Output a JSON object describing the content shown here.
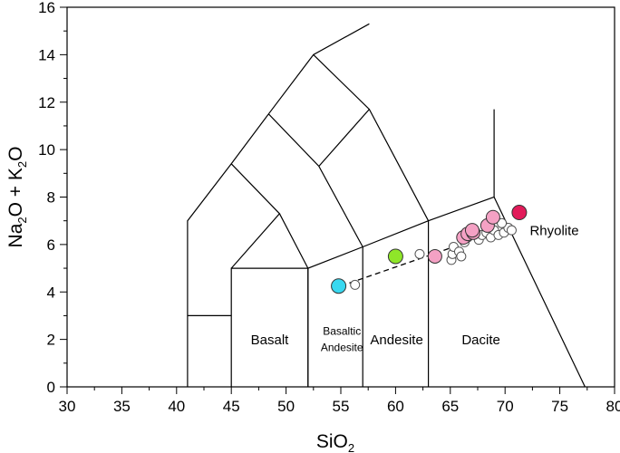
{
  "chart_data": {
    "type": "scatter",
    "title": "",
    "xlabel": {
      "base": "SiO",
      "sub": "2"
    },
    "ylabel": {
      "parts": [
        {
          "t": "Na"
        },
        {
          "t": "2",
          "sub": true
        },
        {
          "t": "O + K"
        },
        {
          "t": "2",
          "sub": true
        },
        {
          "t": "O"
        }
      ]
    },
    "xlim": [
      30,
      80
    ],
    "ylim": [
      0,
      16
    ],
    "x_ticks": [
      "30",
      "35",
      "40",
      "45",
      "50",
      "55",
      "60",
      "65",
      "70",
      "75",
      "80"
    ],
    "y_ticks": [
      "0",
      "2",
      "4",
      "6",
      "8",
      "10",
      "12",
      "14",
      "16"
    ],
    "grid": false,
    "field_boundaries": [
      [
        [
          41,
          0
        ],
        [
          41,
          7
        ],
        [
          45,
          9.4
        ],
        [
          48.4,
          11.5
        ],
        [
          52.5,
          14
        ],
        [
          57.6,
          15.3
        ]
      ],
      [
        [
          41,
          3
        ],
        [
          45,
          3
        ]
      ],
      [
        [
          45,
          0
        ],
        [
          45,
          5
        ],
        [
          52,
          5
        ],
        [
          52,
          0
        ]
      ],
      [
        [
          45,
          9.4
        ],
        [
          49.4,
          7.3
        ],
        [
          45,
          5
        ]
      ],
      [
        [
          48.4,
          11.5
        ],
        [
          53,
          9.3
        ],
        [
          57,
          5.9
        ]
      ],
      [
        [
          49.4,
          7.3
        ],
        [
          52,
          5
        ],
        [
          57,
          5.9
        ],
        [
          63,
          7
        ],
        [
          69,
          8
        ],
        [
          69,
          11.7
        ]
      ],
      [
        [
          52.5,
          14
        ],
        [
          57.6,
          11.7
        ],
        [
          63,
          7
        ]
      ],
      [
        [
          53,
          9.3
        ],
        [
          57.6,
          11.7
        ]
      ],
      [
        [
          52,
          5
        ],
        [
          52,
          0
        ]
      ],
      [
        [
          57,
          5.9
        ],
        [
          57,
          0
        ]
      ],
      [
        [
          63,
          7
        ],
        [
          63,
          0
        ]
      ],
      [
        [
          69,
          8
        ],
        [
          77.3,
          0
        ]
      ]
    ],
    "field_labels": [
      {
        "text": "Basalt",
        "x": 48.5,
        "y": 1.8,
        "size": 15
      },
      {
        "text": "Basaltic",
        "x": 55.1,
        "y": 2.2,
        "size": 12
      },
      {
        "text": "Andesite",
        "x": 55.1,
        "y": 1.5,
        "size": 12
      },
      {
        "text": "Andesite",
        "x": 60.1,
        "y": 1.8,
        "size": 15
      },
      {
        "text": "Dacite",
        "x": 67.8,
        "y": 1.8,
        "size": 15
      },
      {
        "text": "Rhyolite",
        "x": 74.5,
        "y": 6.4,
        "size": 15
      }
    ],
    "tie_line": [
      [
        55,
        4.25
      ],
      [
        65,
        5.85
      ]
    ],
    "series": [
      {
        "color": "#ffffff",
        "stroke": "#555555",
        "size": 5,
        "points": [
          [
            56.3,
            4.3
          ],
          [
            62.2,
            5.6
          ],
          [
            65.1,
            5.35
          ],
          [
            65.2,
            5.6
          ],
          [
            65.3,
            5.9
          ],
          [
            65.8,
            5.7
          ],
          [
            66.0,
            5.5
          ],
          [
            66.3,
            6.1
          ],
          [
            66.6,
            6.3
          ],
          [
            67.6,
            6.2
          ],
          [
            67.9,
            6.4
          ],
          [
            68.3,
            6.5
          ],
          [
            68.7,
            6.3
          ],
          [
            69.0,
            6.6
          ],
          [
            69.4,
            6.4
          ],
          [
            69.9,
            6.5
          ],
          [
            70.3,
            6.7
          ],
          [
            70.6,
            6.6
          ],
          [
            69.7,
            6.9
          ]
        ]
      },
      {
        "color": "#f4a1c4",
        "stroke": "#333333",
        "size": 7.5,
        "points": [
          [
            63.6,
            5.5
          ],
          [
            66.2,
            6.3
          ],
          [
            66.6,
            6.45
          ],
          [
            67.1,
            6.5
          ],
          [
            68.4,
            6.8
          ],
          [
            68.9,
            7.15
          ],
          [
            67.0,
            6.6
          ]
        ]
      },
      {
        "color": "#8fe629",
        "stroke": "#333333",
        "size": 8,
        "points": [
          [
            60.0,
            5.5
          ]
        ]
      },
      {
        "color": "#39d8f0",
        "stroke": "#333333",
        "size": 8,
        "points": [
          [
            54.8,
            4.25
          ]
        ]
      },
      {
        "color": "#e21b5a",
        "stroke": "#333333",
        "size": 8,
        "points": [
          [
            71.3,
            7.35
          ]
        ]
      }
    ]
  }
}
